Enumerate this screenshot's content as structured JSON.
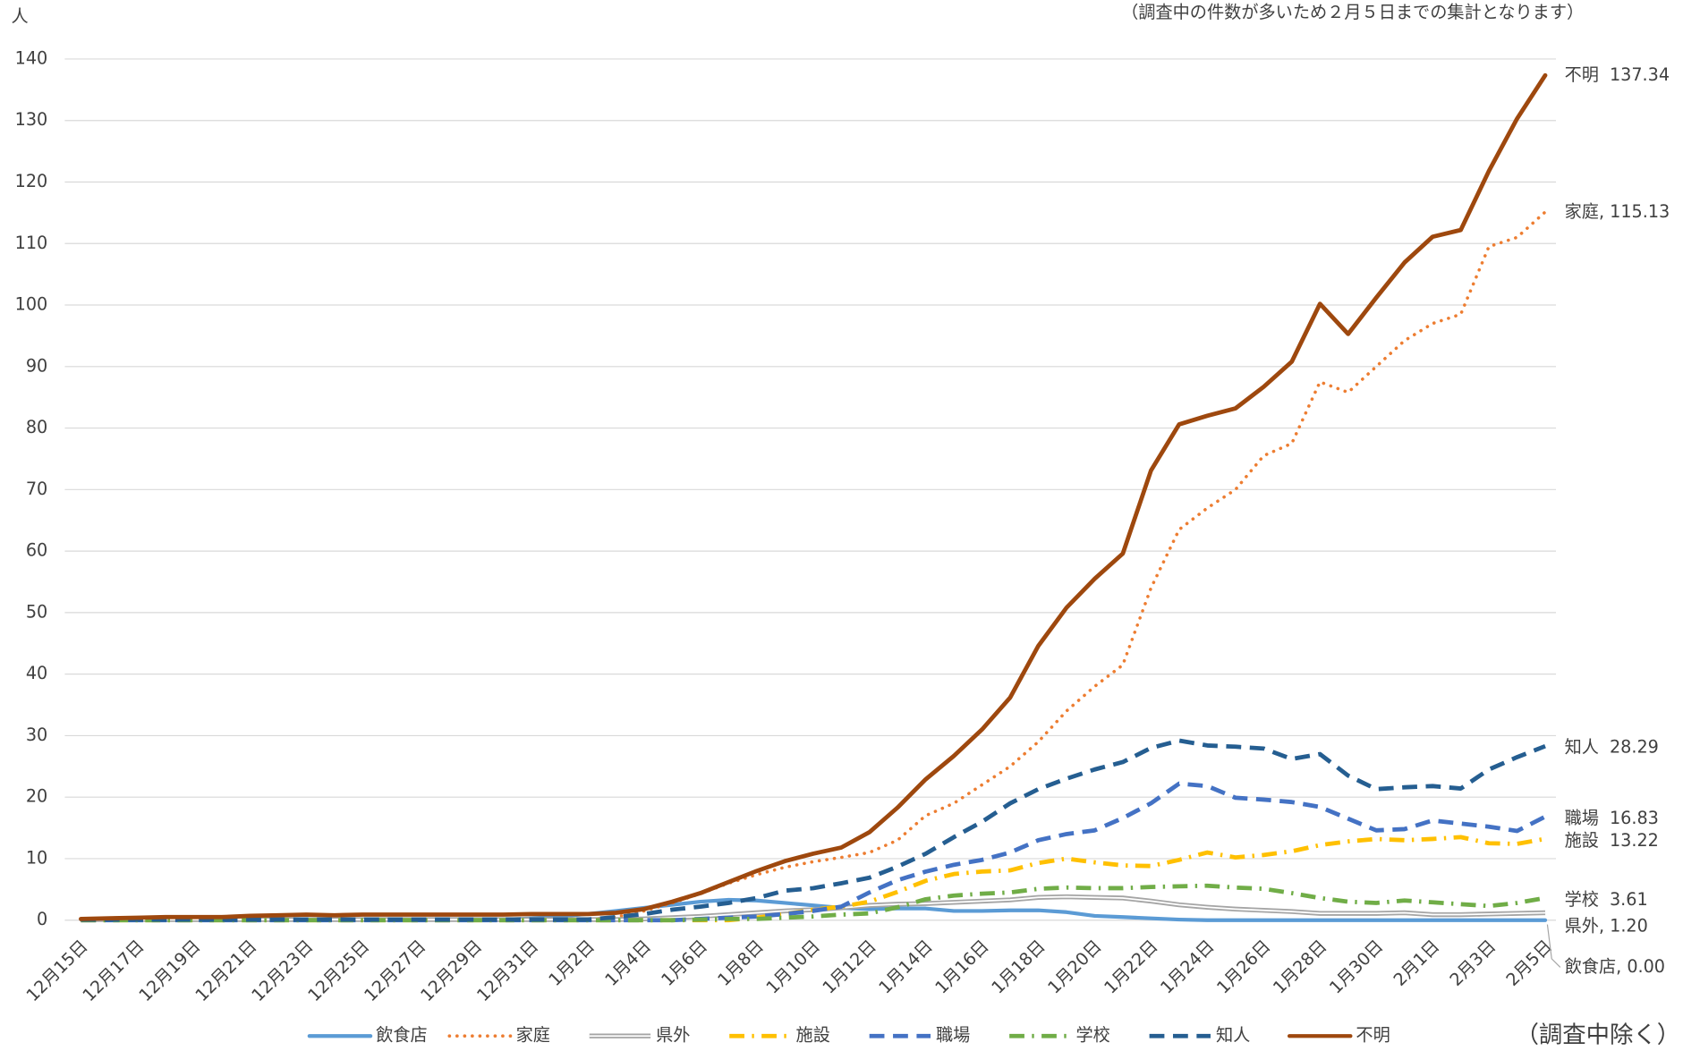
{
  "chart_data": {
    "type": "line",
    "y_axis_label": "人",
    "note": "（調査中の件数が多いため２月５日までの集計となります）",
    "footnote": "（調査中除く）",
    "categories": [
      "12月15日",
      null,
      "12月17日",
      null,
      "12月19日",
      null,
      "12月21日",
      null,
      "12月23日",
      null,
      "12月25日",
      null,
      "12月27日",
      null,
      "12月29日",
      null,
      "12月31日",
      null,
      "1月2日",
      null,
      "1月4日",
      null,
      "1月6日",
      null,
      "1月8日",
      null,
      "1月10日",
      null,
      "1月12日",
      null,
      "1月14日",
      null,
      "1月16日",
      null,
      "1月18日",
      null,
      "1月20日",
      null,
      "1月22日",
      null,
      "1月24日",
      null,
      "1月26日",
      null,
      "1月28日",
      null,
      "1月30日",
      null,
      "2月1日",
      null,
      "2月3日",
      null,
      "2月5日"
    ],
    "ylim": [
      0,
      140
    ],
    "yticks": [
      0,
      10,
      20,
      30,
      40,
      50,
      60,
      70,
      80,
      90,
      100,
      110,
      120,
      130,
      140
    ],
    "grid": true,
    "series": [
      {
        "name": "飲食店",
        "color": "#5b9bd5",
        "style": "solid",
        "values": [
          0.1,
          0.1,
          0.1,
          0.1,
          0.1,
          0.1,
          0.1,
          0.1,
          0.1,
          0.1,
          0.1,
          0.1,
          0.1,
          0.1,
          0.1,
          0.1,
          0.3,
          0.6,
          1,
          1.5,
          2,
          2.5,
          3,
          3.3,
          3.2,
          2.8,
          2.4,
          2,
          1.8,
          1.9,
          1.9,
          1.5,
          1.5,
          1.6,
          1.6,
          1.3,
          0.7,
          0.5,
          0.3,
          0.1,
          0,
          0,
          0,
          0,
          0,
          0,
          0,
          0,
          0,
          0,
          0,
          0,
          0
        ],
        "value_labels": [
          null,
          null,
          null,
          null,
          null,
          null,
          null,
          null,
          null,
          null,
          null,
          null,
          null,
          null,
          null,
          null,
          null,
          null,
          null,
          null,
          null,
          null,
          null,
          null,
          null,
          null,
          null,
          null,
          null,
          null,
          null,
          null,
          null,
          null,
          null,
          null,
          null,
          null,
          null,
          null,
          null,
          null,
          null,
          null,
          null,
          null,
          null,
          null,
          null,
          null,
          null,
          null,
          "飲食店, 0.00"
        ]
      },
      {
        "name": "家庭",
        "color": "#ed7d31",
        "style": "dotted",
        "values": [
          0.1,
          0.1,
          0.1,
          0.1,
          0.1,
          0.1,
          0.1,
          0.1,
          0.1,
          0.1,
          0.1,
          0.1,
          0.1,
          0.1,
          0.1,
          0.1,
          0.1,
          0.1,
          0.1,
          0.5,
          1.5,
          2.8,
          4.3,
          6,
          7.4,
          8.6,
          9.5,
          10.2,
          11,
          13,
          17,
          19,
          22,
          25,
          29,
          34,
          38,
          41.5,
          54,
          63.5,
          67,
          70,
          75.5,
          77.5,
          87.5,
          85.8,
          90,
          94.2,
          97,
          98.5,
          109.5,
          111,
          115.13
        ],
        "value_labels": [
          null,
          null,
          null,
          null,
          null,
          null,
          null,
          null,
          null,
          null,
          null,
          null,
          null,
          null,
          null,
          null,
          null,
          null,
          null,
          null,
          null,
          null,
          null,
          null,
          null,
          null,
          null,
          null,
          null,
          null,
          null,
          null,
          null,
          null,
          null,
          null,
          null,
          null,
          null,
          null,
          null,
          null,
          null,
          null,
          null,
          null,
          null,
          null,
          null,
          null,
          null,
          null,
          "家庭, 115.13"
        ]
      },
      {
        "name": "県外",
        "color": "#a5a5a5",
        "style": "double",
        "values": [
          0.1,
          0.1,
          0.1,
          0.1,
          0.1,
          0.1,
          0.1,
          0.1,
          0.1,
          0.1,
          0.1,
          0.1,
          0.1,
          0.1,
          0.1,
          0.1,
          0.1,
          0.1,
          0.1,
          0.1,
          0.2,
          0.4,
          0.6,
          0.9,
          1.2,
          1.5,
          1.7,
          2,
          2.4,
          2.6,
          2.7,
          2.9,
          3.1,
          3.3,
          3.7,
          3.8,
          3.7,
          3.6,
          3.1,
          2.5,
          2.1,
          1.8,
          1.6,
          1.4,
          1.1,
          1.1,
          1.1,
          1.2,
          0.9,
          0.9,
          1,
          1.1,
          1.2
        ],
        "value_labels": [
          null,
          null,
          null,
          null,
          null,
          null,
          null,
          null,
          null,
          null,
          null,
          null,
          null,
          null,
          null,
          null,
          null,
          null,
          null,
          null,
          null,
          null,
          null,
          null,
          null,
          null,
          null,
          null,
          null,
          null,
          null,
          null,
          null,
          null,
          null,
          null,
          null,
          null,
          null,
          null,
          null,
          null,
          null,
          null,
          null,
          null,
          null,
          null,
          null,
          null,
          null,
          null,
          "県外, 1.20"
        ]
      },
      {
        "name": "施設",
        "color": "#ffc000",
        "style": "dashdot",
        "values": [
          0,
          0,
          0,
          0,
          0,
          0,
          0,
          0,
          0,
          0,
          0,
          0,
          0,
          0,
          0,
          0,
          0,
          0,
          0,
          0,
          0,
          0,
          0,
          0,
          0.4,
          1,
          1.7,
          2.2,
          3,
          4.6,
          6.4,
          7.5,
          7.9,
          8.1,
          9.3,
          10,
          9.4,
          8.9,
          8.8,
          9.8,
          11,
          10.2,
          10.6,
          11.2,
          12.2,
          12.8,
          13.2,
          13,
          13.2,
          13.5,
          12.5,
          12.4,
          13.22
        ]
      },
      {
        "name": "職場",
        "color": "#4472c4",
        "style": "dashed",
        "values": [
          0,
          0,
          0,
          0,
          0,
          0,
          0,
          0,
          0,
          0,
          0,
          0,
          0,
          0,
          0,
          0,
          0,
          0,
          0,
          0,
          0,
          0,
          0.2,
          0.4,
          0.6,
          1,
          1.5,
          2.2,
          4.5,
          6.5,
          7.9,
          9,
          9.8,
          11,
          13,
          14,
          14.6,
          16.6,
          19,
          22.2,
          21.8,
          19.9,
          19.6,
          19.2,
          18.4,
          16.5,
          14.6,
          14.8,
          16.2,
          15.7,
          15.2,
          14.5,
          16.83
        ]
      },
      {
        "name": "学校",
        "color": "#70ad47",
        "style": "dashdot",
        "values": [
          0,
          0,
          0,
          0,
          0,
          0,
          0,
          0,
          0,
          0,
          0,
          0,
          0,
          0,
          0,
          0,
          0,
          0,
          0,
          0,
          0,
          0,
          0.1,
          0.2,
          0.2,
          0.4,
          0.6,
          0.9,
          1.1,
          2.1,
          3.4,
          4,
          4.3,
          4.5,
          5.1,
          5.3,
          5.2,
          5.2,
          5.4,
          5.5,
          5.6,
          5.3,
          5.1,
          4.4,
          3.6,
          3,
          2.8,
          3.2,
          2.9,
          2.6,
          2.3,
          2.8,
          3.61
        ]
      },
      {
        "name": "知人",
        "color": "#255e91",
        "style": "dashed",
        "values": [
          0.1,
          0.1,
          0.1,
          0.1,
          0.1,
          0.1,
          0.1,
          0.1,
          0.1,
          0.1,
          0.1,
          0.1,
          0.1,
          0.1,
          0.1,
          0.1,
          0.1,
          0.1,
          0.1,
          0.5,
          1,
          1.7,
          2.2,
          2.8,
          3.6,
          4.8,
          5.2,
          6,
          6.9,
          8.7,
          10.8,
          13.5,
          16,
          19,
          21.3,
          23,
          24.5,
          25.7,
          28,
          29.2,
          28.4,
          28.2,
          27.9,
          26.2,
          27,
          23.5,
          21.3,
          21.6,
          21.8,
          21.4,
          24.5,
          26.5,
          28.29
        ]
      },
      {
        "name": "不明",
        "color": "#9e480e",
        "style": "solid",
        "values": [
          0.2,
          0.3,
          0.4,
          0.5,
          0.5,
          0.5,
          0.7,
          0.8,
          0.9,
          0.8,
          0.9,
          0.9,
          0.9,
          0.9,
          0.9,
          0.9,
          1.0,
          1.0,
          1.0,
          1.2,
          1.8,
          3.0,
          4.4,
          6.2,
          8,
          9.6,
          10.8,
          11.8,
          14.3,
          18.3,
          22.9,
          26.7,
          31,
          36.2,
          44.6,
          50.8,
          55.5,
          59.6,
          73.1,
          80.6,
          82,
          83.2,
          86.7,
          90.8,
          100.2,
          95.3,
          101.2,
          106.9,
          111.1,
          112.2,
          121.8,
          130.3,
          137.34
        ]
      }
    ]
  }
}
